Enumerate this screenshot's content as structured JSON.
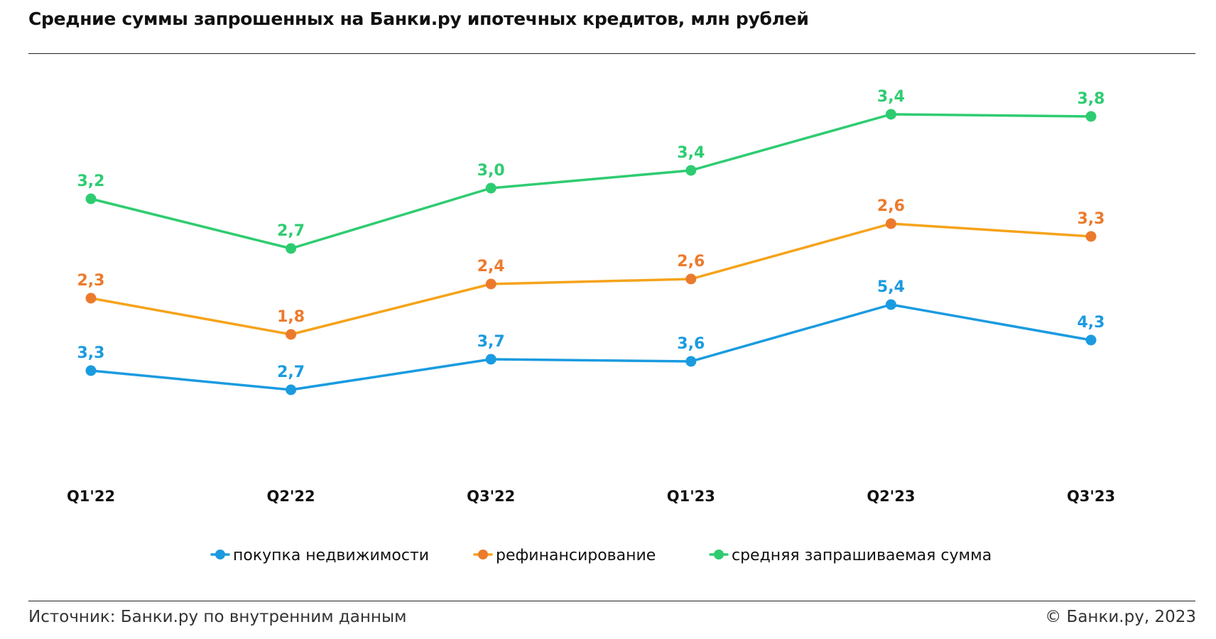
{
  "title": "Средние суммы запрошенных на Банки.ру ипотечных кредитов, млн рублей",
  "footer": {
    "source": "Источник: Банки.ру по внутренним данным",
    "copyright": "© Банки.ру, 2023"
  },
  "chart_data": {
    "type": "line",
    "title": "Средние суммы запрошенных на Банки.ру ипотечных кредитов, млн рублей",
    "categories": [
      "Q1'22",
      "Q2'22",
      "Q3'22",
      "Q1'23",
      "Q2'23",
      "Q3'23"
    ],
    "y_axis_shown": false,
    "grid": false,
    "legend_position": "bottom-center",
    "series": [
      {
        "name": "покупка недвижимости",
        "color": "#1a9be0",
        "label_color": "#1a9be0",
        "values": [
          3.3,
          2.7,
          3.7,
          3.6,
          5.4,
          4.3
        ],
        "labels": [
          "3,3",
          "2,7",
          "3,7",
          "3,6",
          "5,4",
          "4,3"
        ]
      },
      {
        "name": "рефинансирование",
        "color": "#f5a31a",
        "label_color": "#ec7a2d",
        "marker_color": "#ec7a2d",
        "values": [
          2.3,
          1.8,
          2.4,
          2.6,
          2.6,
          3.3
        ],
        "labels": [
          "2,3",
          "1,8",
          "2,4",
          "2,6",
          "2,6",
          "3,3"
        ]
      },
      {
        "name": "средняя запрашиваемая сумма",
        "color": "#2ecc71",
        "label_color": "#2ecc71",
        "values": [
          3.2,
          2.7,
          3.0,
          3.4,
          3.4,
          3.8
        ],
        "labels": [
          "3,2",
          "2,7",
          "3,0",
          "3,4",
          "3,4",
          "3,8"
        ]
      }
    ]
  }
}
